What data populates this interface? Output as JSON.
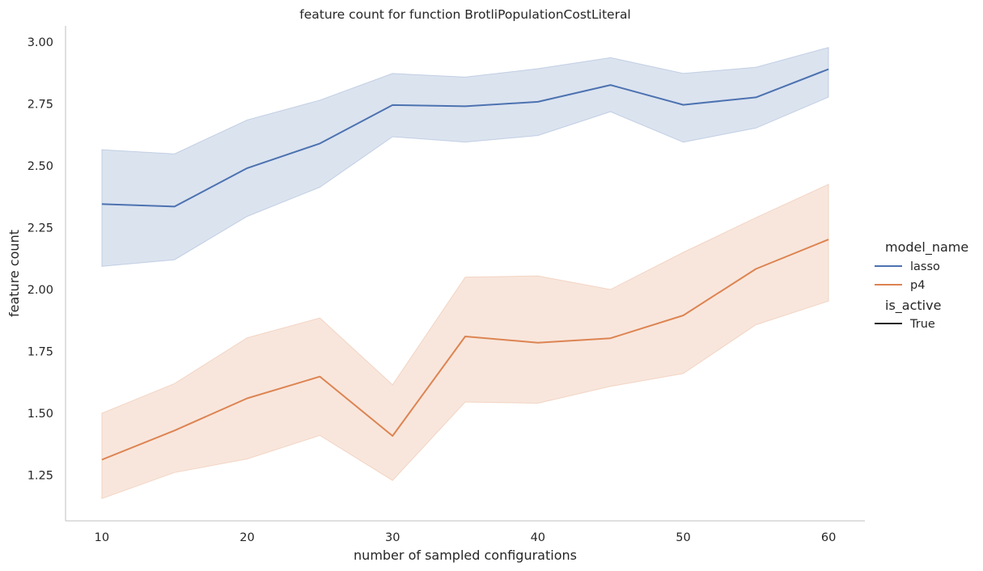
{
  "chart_data": {
    "type": "line",
    "title": "feature count for function BrotliPopulationCostLiteral",
    "xlabel": "number of sampled configurations",
    "ylabel": "feature count",
    "xlim": [
      7.5,
      62.5
    ],
    "ylim": [
      1.065,
      3.065
    ],
    "x_ticks": [
      "10",
      "20",
      "30",
      "40",
      "50",
      "60"
    ],
    "y_ticks": [
      "1.25",
      "1.50",
      "1.75",
      "2.00",
      "2.25",
      "2.50",
      "2.75",
      "3.00"
    ],
    "x": [
      10,
      15,
      20,
      25,
      30,
      35,
      40,
      45,
      50,
      55,
      60
    ],
    "grid": false,
    "legend_placement": "right",
    "legend": {
      "hue_title": "model_name",
      "style_title": "is_active",
      "style_entries": [
        "True"
      ]
    },
    "series": [
      {
        "name": "lasso",
        "color": "#4c72b0",
        "values": [
          2.345,
          2.335,
          2.49,
          2.59,
          2.745,
          2.74,
          2.758,
          2.826,
          2.746,
          2.776,
          2.89
        ],
        "ci_low": [
          2.093,
          2.12,
          2.295,
          2.413,
          2.617,
          2.595,
          2.622,
          2.718,
          2.595,
          2.652,
          2.777
        ],
        "ci_high": [
          2.565,
          2.548,
          2.685,
          2.765,
          2.873,
          2.858,
          2.892,
          2.937,
          2.873,
          2.898,
          2.978
        ]
      },
      {
        "name": "p4",
        "color": "#dd8452",
        "values": [
          1.312,
          1.43,
          1.56,
          1.648,
          1.408,
          1.81,
          1.785,
          1.803,
          1.895,
          2.083,
          2.202
        ],
        "ci_low": [
          1.155,
          1.26,
          1.315,
          1.41,
          1.228,
          1.545,
          1.54,
          1.608,
          1.66,
          1.857,
          1.953
        ],
        "ci_high": [
          1.5,
          1.62,
          1.805,
          1.885,
          1.615,
          2.05,
          2.055,
          2.0,
          2.15,
          2.29,
          2.425
        ]
      }
    ]
  }
}
